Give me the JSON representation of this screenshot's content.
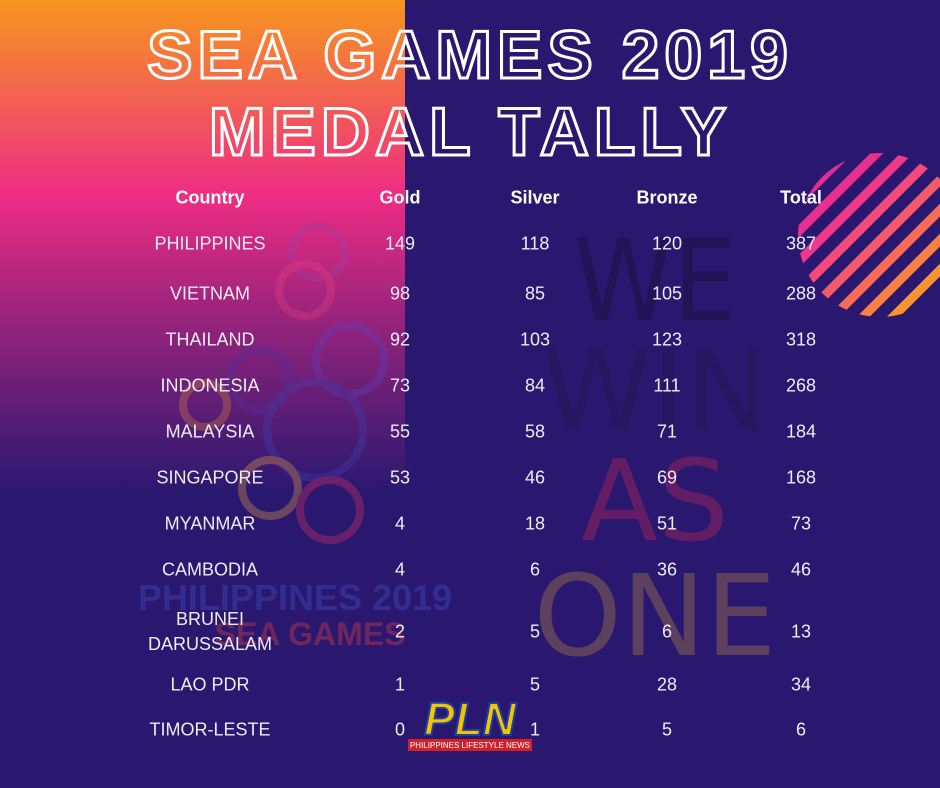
{
  "title": {
    "line1": "SEA GAMES 2019",
    "line2": "MEDAL TALLY"
  },
  "table": {
    "header": [
      "Country",
      "Gold",
      "Silver",
      "Bronze",
      "Total"
    ],
    "rows": [
      [
        "PHILIPPINES",
        "149",
        "118",
        "120",
        "387"
      ],
      [
        "VIETNAM",
        "98",
        "85",
        "105",
        "288"
      ],
      [
        "THAILAND",
        "92",
        "103",
        "123",
        "318"
      ],
      [
        "INDONESIA",
        "73",
        "84",
        "111",
        "268"
      ],
      [
        "MALAYSIA",
        "55",
        "58",
        "71",
        "184"
      ],
      [
        "SINGAPORE",
        "53",
        "46",
        "69",
        "168"
      ],
      [
        "MYANMAR",
        "4",
        "18",
        "51",
        "73"
      ],
      [
        "CAMBODIA",
        "4",
        "6",
        "36",
        "46"
      ],
      [
        "BRUNEI DARUSSALAM",
        "2",
        "5",
        "6",
        "13"
      ],
      [
        "LAO PDR",
        "1",
        "5",
        "28",
        "34"
      ],
      [
        "TIMOR-LESTE",
        "0",
        "1",
        "5",
        "6"
      ]
    ]
  },
  "watermark": {
    "lines": [
      "WE",
      "WIN",
      "AS",
      "ONE"
    ],
    "event_line1": "PHILIPPINES 2019",
    "event_line2": "SEA GAMES"
  },
  "logo": {
    "mark": "PLN",
    "caption": "PHILIPPINES LIFESTYLE NEWS"
  }
}
